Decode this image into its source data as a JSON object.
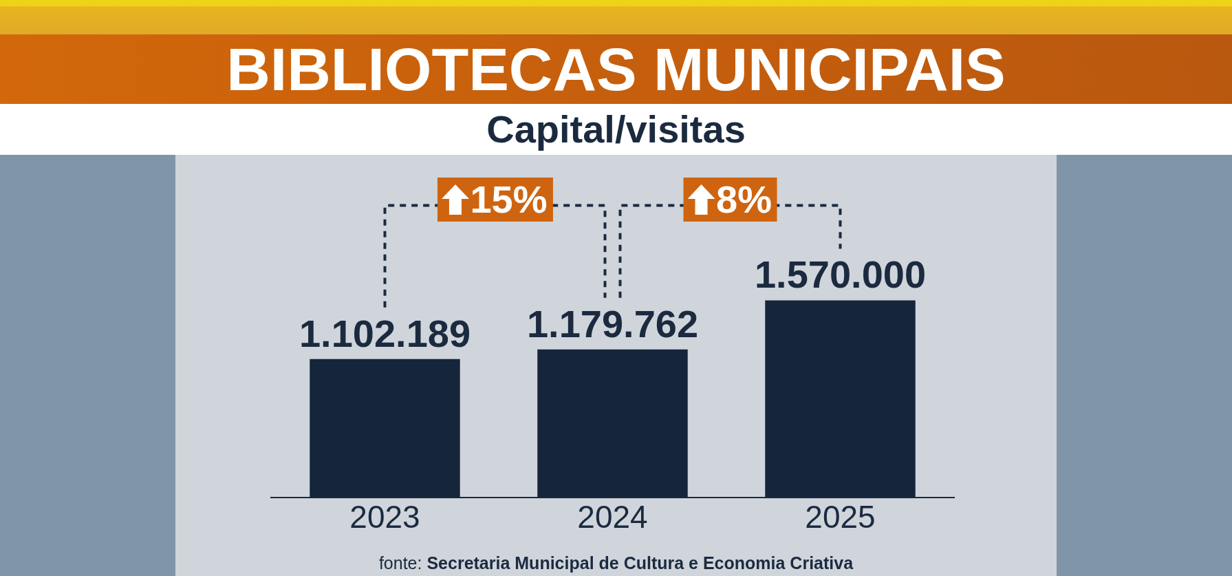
{
  "chart_data": {
    "type": "bar",
    "title": "BIBLIOTECAS MUNICIPAIS",
    "subtitle": "Capital/visitas",
    "categories": [
      "2023",
      "2024",
      "2025"
    ],
    "values": [
      1102189,
      1179762,
      1570000
    ],
    "value_labels": [
      "1.102.189",
      "1.179.762",
      "1.570.000"
    ],
    "color": "#15253b",
    "annotations": [
      "15%",
      "8%",
      "fonte: Secretaria Municipal de Cultura e Economia Criativa"
    ],
    "grid": false,
    "legend": false,
    "tick_labels": "x"
  }
}
